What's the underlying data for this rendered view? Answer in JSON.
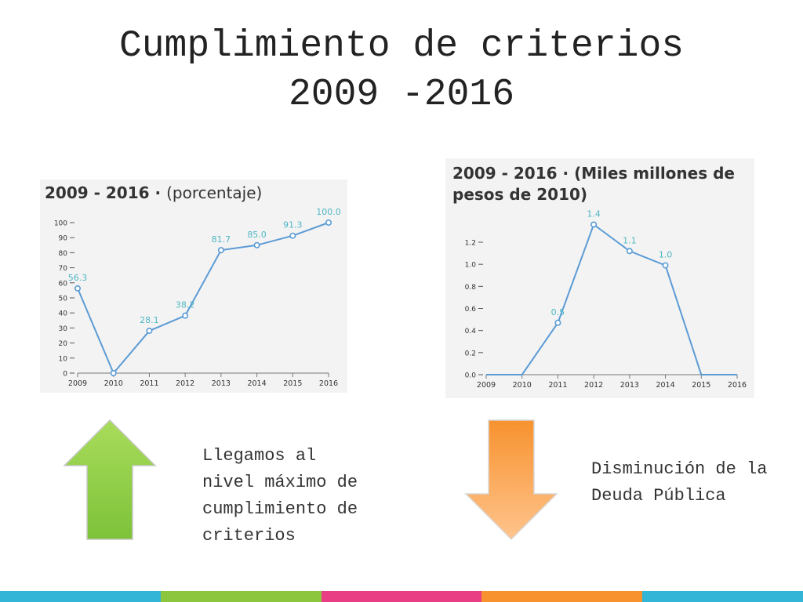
{
  "slide": {
    "title_line1": "Cumplimiento de criterios",
    "title_line2": "2009 -2016"
  },
  "captions": {
    "left": "Llegamos al nivel máximo de cumplimiento de criterios",
    "right": "Disminución de la Deuda Pública"
  },
  "arrows": {
    "left": {
      "icon": "arrow-up-icon",
      "color_top": "#a8dc5a",
      "color_bottom": "#7ec23a"
    },
    "right": {
      "icon": "arrow-down-icon",
      "color_top": "#f7922f",
      "color_bottom": "#ffc48c"
    }
  },
  "color_bar": [
    "#33b5d7",
    "#8cc63f",
    "#e93e84",
    "#f7922f",
    "#33b5d7"
  ],
  "colors": {
    "line": "#5b9bd5",
    "label": "#4fb7c4",
    "axis_text": "#333333"
  },
  "chart_data": [
    {
      "type": "line",
      "title": "2009 - 2016 · ",
      "title_unit": "(porcentaje)",
      "categories": [
        "2009",
        "2010",
        "2011",
        "2012",
        "2013",
        "2014",
        "2015",
        "2016"
      ],
      "values": [
        56.3,
        0,
        28.1,
        38.2,
        81.7,
        85.0,
        91.3,
        100.0
      ],
      "data_labels": [
        "56.3",
        "",
        "28.1",
        "38.2",
        "81.7",
        "85.0",
        "91.3",
        "100.0"
      ],
      "yticks": [
        0,
        10,
        20,
        30,
        40,
        50,
        60,
        70,
        80,
        90,
        100
      ],
      "ylim": [
        0,
        100
      ],
      "grid": false,
      "legend": "none"
    },
    {
      "type": "line",
      "title": "2009 - 2016 · (Miles millones de pesos de 2010)",
      "categories": [
        "2009",
        "2010",
        "2011",
        "2012",
        "2013",
        "2014",
        "2015",
        "2016"
      ],
      "values": [
        0,
        0,
        0.47,
        1.36,
        1.12,
        0.99,
        0,
        0
      ],
      "data_labels": [
        "",
        "",
        "0.5",
        "1.4",
        "1.1",
        "1.0",
        "",
        ""
      ],
      "markers": [
        false,
        false,
        true,
        true,
        true,
        true,
        false,
        false
      ],
      "yticks": [
        0.0,
        0.2,
        0.4,
        0.6,
        0.8,
        1.0,
        1.2
      ],
      "ytick_labels": [
        "0.0",
        "0.2",
        "0.4",
        "0.6",
        "0.8",
        "1.0",
        "1.2"
      ],
      "ylim": [
        0,
        1.2
      ],
      "grid": false,
      "legend": "none"
    }
  ]
}
